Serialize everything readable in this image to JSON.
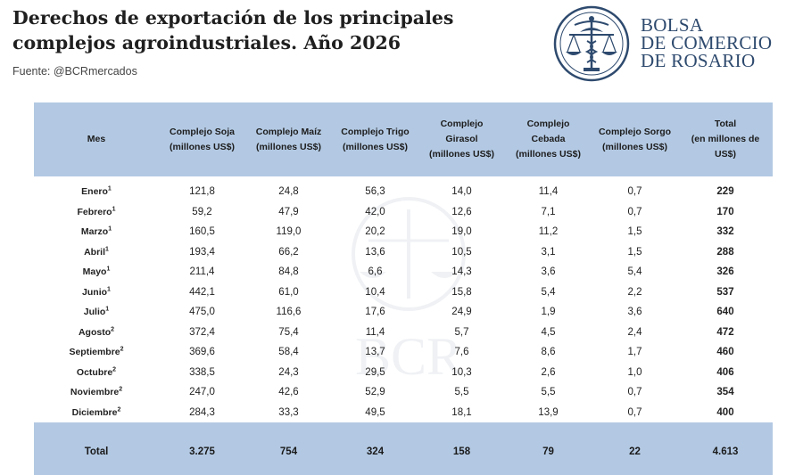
{
  "header": {
    "title_line1": "Derechos de exportación de los principales",
    "title_line2": "complejos agroindustriales. Año 2026",
    "source": "Fuente: @BCRmercados"
  },
  "logo": {
    "line1": "BOLSA",
    "line2": "DE COMERCIO",
    "line3": "DE ROSARIO",
    "icon": "scales-of-justice-caduceus-emblem",
    "color": "#2e4a6e"
  },
  "watermark": {
    "text": "BCR"
  },
  "table": {
    "header_bg": "#b3c9e3",
    "columns": [
      {
        "line1": "Mes",
        "line2": "",
        "line3": ""
      },
      {
        "line1": "Complejo Soja",
        "line2": "(millones US$)",
        "line3": ""
      },
      {
        "line1": "Complejo Maíz",
        "line2": "(millones US$)",
        "line3": ""
      },
      {
        "line1": "Complejo Trigo",
        "line2": "(millones US$)",
        "line3": ""
      },
      {
        "line1": "Complejo",
        "line2": "Girasol",
        "line3": "(millones US$)"
      },
      {
        "line1": "Complejo",
        "line2": "Cebada",
        "line3": "(millones US$)"
      },
      {
        "line1": "Complejo Sorgo",
        "line2": "(millones US$)",
        "line3": ""
      },
      {
        "line1": "Total",
        "line2": "(en millones de",
        "line3": "US$)"
      }
    ],
    "rows": [
      {
        "mes": "Enero",
        "note": "1",
        "values": [
          "121,8",
          "24,8",
          "56,3",
          "14,0",
          "11,4",
          "0,7",
          "229"
        ]
      },
      {
        "mes": "Febrero",
        "note": "1",
        "values": [
          "59,2",
          "47,9",
          "42,0",
          "12,6",
          "7,1",
          "0,7",
          "170"
        ]
      },
      {
        "mes": "Marzo",
        "note": "1",
        "values": [
          "160,5",
          "119,0",
          "20,2",
          "19,0",
          "11,2",
          "1,5",
          "332"
        ]
      },
      {
        "mes": "Abril",
        "note": "1",
        "values": [
          "193,4",
          "66,2",
          "13,6",
          "10,5",
          "3,1",
          "1,5",
          "288"
        ]
      },
      {
        "mes": "Mayo",
        "note": "1",
        "values": [
          "211,4",
          "84,8",
          "6,6",
          "14,3",
          "3,6",
          "5,4",
          "326"
        ]
      },
      {
        "mes": "Junio",
        "note": "1",
        "values": [
          "442,1",
          "61,0",
          "10,4",
          "15,8",
          "5,4",
          "2,2",
          "537"
        ]
      },
      {
        "mes": "Julio",
        "note": "1",
        "values": [
          "475,0",
          "116,6",
          "17,6",
          "24,9",
          "1,9",
          "3,6",
          "640"
        ]
      },
      {
        "mes": "Agosto",
        "note": "2",
        "values": [
          "372,4",
          "75,4",
          "11,4",
          "5,7",
          "4,5",
          "2,4",
          "472"
        ]
      },
      {
        "mes": "Septiembre",
        "note": "2",
        "values": [
          "369,6",
          "58,4",
          "13,7",
          "7,6",
          "8,6",
          "1,7",
          "460"
        ]
      },
      {
        "mes": "Octubre",
        "note": "2",
        "values": [
          "338,5",
          "24,3",
          "29,5",
          "10,3",
          "2,6",
          "1,0",
          "406"
        ]
      },
      {
        "mes": "Noviembre",
        "note": "2",
        "values": [
          "247,0",
          "42,6",
          "52,9",
          "5,5",
          "5,5",
          "0,7",
          "354"
        ]
      },
      {
        "mes": "Diciembre",
        "note": "2",
        "values": [
          "284,3",
          "33,3",
          "49,5",
          "18,1",
          "13,9",
          "0,7",
          "400"
        ]
      }
    ],
    "total_row": {
      "label": "Total",
      "values": [
        "3.275",
        "754",
        "324",
        "158",
        "79",
        "22",
        "4.613"
      ]
    }
  }
}
